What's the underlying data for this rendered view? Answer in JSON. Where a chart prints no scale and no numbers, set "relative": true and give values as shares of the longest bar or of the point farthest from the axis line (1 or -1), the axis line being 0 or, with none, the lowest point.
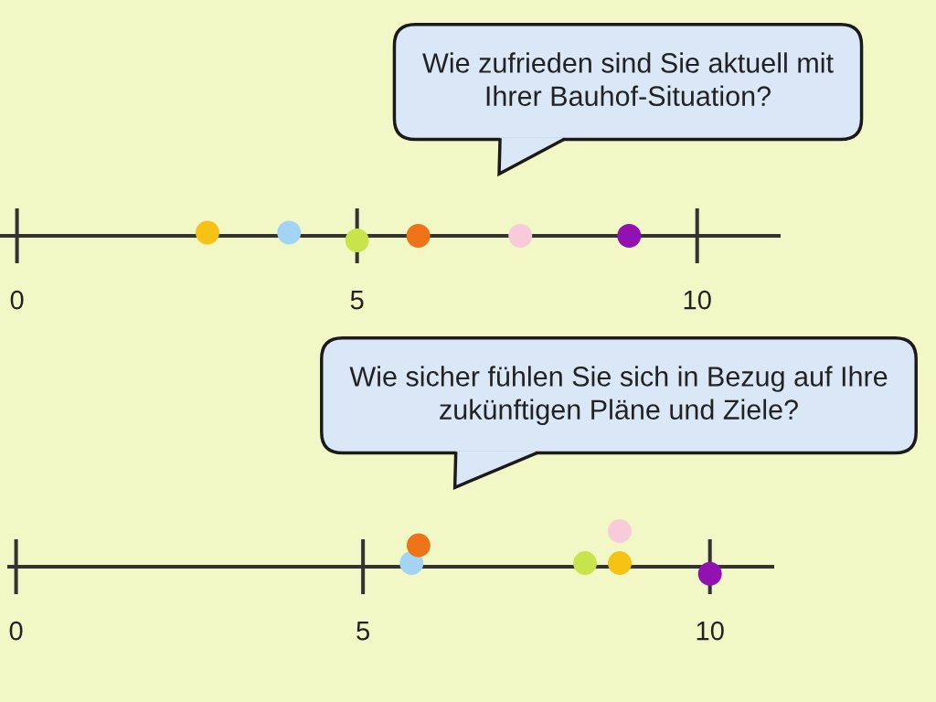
{
  "chart_data": [
    {
      "type": "scatter",
      "title": "Wie zufrieden sind Sie aktuell mit\nIhrer Bauhof-Situation?",
      "x": [
        2.8,
        4.0,
        5.0,
        5.9,
        7.4,
        9.0
      ],
      "values": [
        0.7,
        0.7,
        -1,
        0,
        0,
        0
      ],
      "colors": [
        "#f6c214",
        "#a3d3f5",
        "#c9e34a",
        "#ee7318",
        "#f8cbdb",
        "#9112b0"
      ],
      "relative": true,
      "xlim": [
        -0.25,
        11.2
      ],
      "xticks": [
        0,
        5,
        10
      ],
      "grid": "x",
      "marker": "circle",
      "tick_labels": "x"
    },
    {
      "type": "scatter",
      "title": "Wie sicher fühlen Sie sich in Bezug auf Ihre\nzukünftigen Pläne und Ziele?",
      "x": [
        5.7,
        5.8,
        8.2,
        8.7,
        8.7,
        10.0
      ],
      "values": [
        0.1,
        0.6,
        0.1,
        0.1,
        1,
        -0.2
      ],
      "colors": [
        "#a3d3f5",
        "#ee7318",
        "#c9e34a",
        "#f6c214",
        "#f8cbdb",
        "#9112b0"
      ],
      "relative": true,
      "xlim": [
        -0.1,
        10.9
      ],
      "xticks": [
        0,
        5,
        10
      ],
      "grid": "x",
      "marker": "circle",
      "tick_labels": "x"
    }
  ]
}
